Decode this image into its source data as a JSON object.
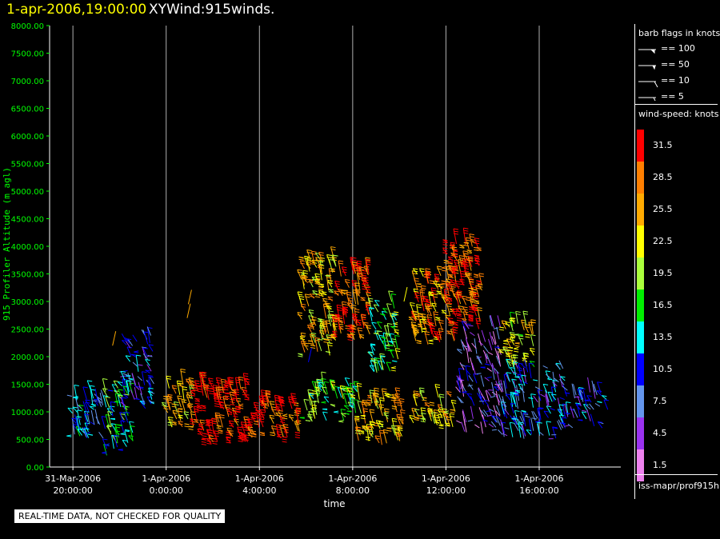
{
  "header": {
    "datetime": "1-apr-2006,19:00:00",
    "title": "XYWind:915winds."
  },
  "legend": {
    "barb_title": "barb flags in knots",
    "barbs": [
      {
        "label": "== 100"
      },
      {
        "label": "== 50"
      },
      {
        "label": "== 10"
      },
      {
        "label": "== 5"
      }
    ],
    "speed_title": "wind-speed: knots",
    "colorbar": [
      {
        "label": "31.5",
        "color": "#ff0000"
      },
      {
        "label": "28.5",
        "color": "#ff7f00"
      },
      {
        "label": "25.5",
        "color": "#ffaa00"
      },
      {
        "label": "22.5",
        "color": "#ffff00"
      },
      {
        "label": "19.5",
        "color": "#aaff3c"
      },
      {
        "label": "16.5",
        "color": "#00ee00"
      },
      {
        "label": "13.5",
        "color": "#00ffff"
      },
      {
        "label": "10.5",
        "color": "#0000ff"
      },
      {
        "label": "7.5",
        "color": "#6495ed"
      },
      {
        "label": "4.5",
        "color": "#9a32f0"
      },
      {
        "label": "1.5",
        "color": "#ee82ee"
      }
    ],
    "source": "iss-mapr/prof915h"
  },
  "notice": "REAL-TIME DATA, NOT CHECKED FOR QUALITY",
  "chart_data": {
    "type": "scatter",
    "title": "1-apr-2006,19:00:00 XYWind:915winds.",
    "xlabel": "time",
    "ylabel": "915 Profiler Altitude (m agl)",
    "ylim": [
      0,
      8000
    ],
    "y_ticks": [
      "0.00",
      "500.00",
      "1000.00",
      "1500.00",
      "2000.00",
      "2500.00",
      "3000.00",
      "3500.00",
      "4000.00",
      "4500.00",
      "5000.00",
      "5500.00",
      "6000.00",
      "6500.00",
      "7000.00",
      "7500.00",
      "8000.00"
    ],
    "x_ticks": [
      {
        "hour": -4,
        "line1": "31-Mar-2006",
        "line2": "20:00:00"
      },
      {
        "hour": 0,
        "line1": "1-Apr-2006",
        "line2": "0:00:00"
      },
      {
        "hour": 4,
        "line1": "1-Apr-2006",
        "line2": "4:00:00"
      },
      {
        "hour": 8,
        "line1": "1-Apr-2006",
        "line2": "8:00:00"
      },
      {
        "hour": 12,
        "line1": "1-Apr-2006",
        "line2": "12:00:00"
      },
      {
        "hour": 16,
        "line1": "1-Apr-2006",
        "line2": "16:00:00"
      }
    ],
    "xlim_hours": [
      -5,
      19.5
    ],
    "grid": "vertical lines at labelled times",
    "legend_position": "right",
    "series_clusters": [
      {
        "t_start": -4.2,
        "t_end": -2.6,
        "alt_low": 500,
        "alt_high": 1400,
        "speed": 11
      },
      {
        "t_start": -2.6,
        "t_end": -1.4,
        "alt_low": 200,
        "alt_high": 1500,
        "speed": 15
      },
      {
        "t_start": -1.8,
        "t_end": -0.5,
        "alt_low": 1000,
        "alt_high": 2400,
        "speed": 9
      },
      {
        "t_start": 0.0,
        "t_end": 1.2,
        "alt_low": 700,
        "alt_high": 1500,
        "speed": 25
      },
      {
        "t_start": 1.2,
        "t_end": 3.6,
        "alt_low": 400,
        "alt_high": 1500,
        "speed": 31
      },
      {
        "t_start": 3.6,
        "t_end": 5.8,
        "alt_low": 500,
        "alt_high": 1200,
        "speed": 30
      },
      {
        "t_start": 5.8,
        "t_end": 7.3,
        "alt_low": 2000,
        "alt_high": 3800,
        "speed": 24
      },
      {
        "t_start": 7.3,
        "t_end": 8.8,
        "alt_low": 2300,
        "alt_high": 3600,
        "speed": 29
      },
      {
        "t_start": 8.8,
        "t_end": 10.0,
        "alt_low": 1700,
        "alt_high": 3000,
        "speed": 17
      },
      {
        "t_start": 5.8,
        "t_end": 8.2,
        "alt_low": 800,
        "alt_high": 1500,
        "speed": 18
      },
      {
        "t_start": 8.2,
        "t_end": 10.2,
        "alt_low": 400,
        "alt_high": 1300,
        "speed": 24
      },
      {
        "t_start": 10.6,
        "t_end": 12.4,
        "alt_low": 2200,
        "alt_high": 3500,
        "speed": 27
      },
      {
        "t_start": 12.0,
        "t_end": 13.6,
        "alt_low": 2500,
        "alt_high": 4100,
        "speed": 30
      },
      {
        "t_start": 10.6,
        "t_end": 12.4,
        "alt_low": 700,
        "alt_high": 1300,
        "speed": 24
      },
      {
        "t_start": 12.6,
        "t_end": 14.4,
        "alt_low": 600,
        "alt_high": 2600,
        "speed": 6
      },
      {
        "t_start": 14.4,
        "t_end": 15.8,
        "alt_low": 1800,
        "alt_high": 2600,
        "speed": 22
      },
      {
        "t_start": 14.4,
        "t_end": 17.2,
        "alt_low": 500,
        "alt_high": 1800,
        "speed": 10
      },
      {
        "t_start": 17.2,
        "t_end": 19.0,
        "alt_low": 700,
        "alt_high": 1400,
        "speed": 8
      }
    ]
  }
}
